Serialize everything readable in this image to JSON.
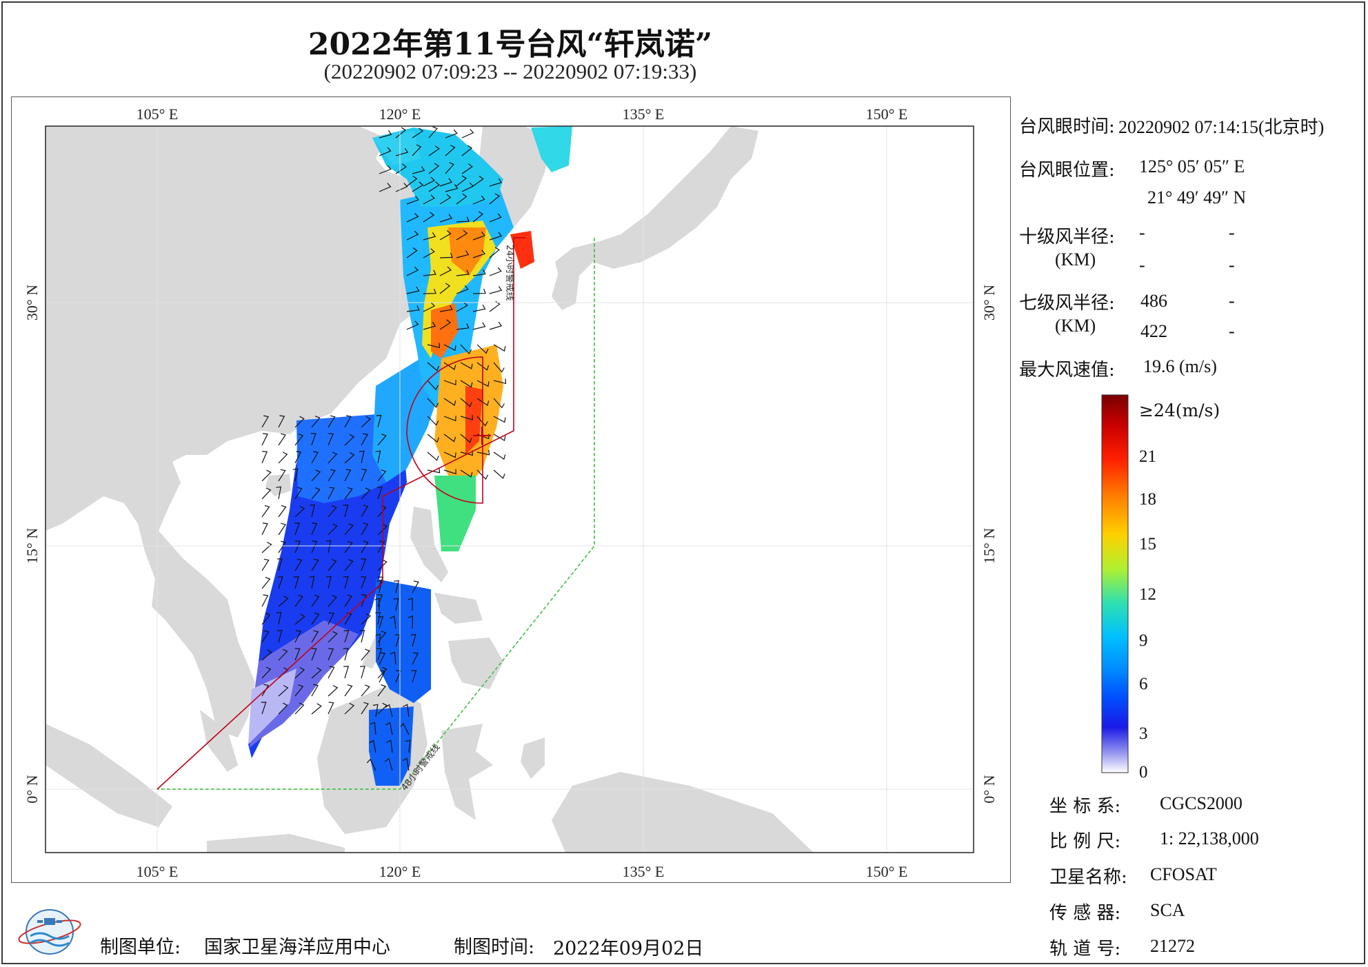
{
  "title": "2022年第11号台风“轩岚诺”",
  "subtitle": "(20220902 07:09:23 -- 20220902 07:19:33)",
  "axes": {
    "lon_top": [
      "105° E",
      "120° E",
      "135° E",
      "150° E"
    ],
    "lon_bottom": [
      "105° E",
      "120° E",
      "135° E",
      "150° E"
    ],
    "lat_left": [
      "30° N",
      "15° N",
      "0° N"
    ],
    "lat_right": [
      "30° N",
      "15° N",
      "0° N"
    ]
  },
  "map_labels": {
    "line_24h": "24小时警戒线",
    "line_48h": "48小时警戒线"
  },
  "info": {
    "eye_time_label": "台风眼时间:",
    "eye_time_value": "20220902 07:14:15(北京时)",
    "eye_pos_label": "台风眼位置:",
    "eye_lon": "125° 05′ 05″ E",
    "eye_lat": "21° 49′ 49″ N",
    "r10_label": "十级风半径:",
    "r10_unit": "(KM)",
    "r10_values": [
      "-",
      "-",
      "-",
      "-"
    ],
    "r7_label": "七级风半径:",
    "r7_unit": "(KM)",
    "r7_values": [
      "486",
      "-",
      "422",
      "-"
    ],
    "max_wind_label": "最大风速值:",
    "max_wind_value": "19.6  (m/s)"
  },
  "colorbar": {
    "top_label": "≥24(m/s)",
    "ticks": [
      "21",
      "18",
      "15",
      "12",
      "9",
      "6",
      "3",
      "0"
    ],
    "colors": [
      "#7a0000",
      "#c80000",
      "#ff2a00",
      "#ff7a00",
      "#ffc000",
      "#e8ff1a",
      "#90f040",
      "#30e0b0",
      "#00c8ff",
      "#0090ff",
      "#0050ff",
      "#1a20e6",
      "#5a5aee",
      "#a8a8f4",
      "#ffffff"
    ]
  },
  "meta": {
    "crs_label": "坐 标 系:",
    "crs_value": "CGCS2000",
    "scale_label": "比 例 尺:",
    "scale_value": "1: 22,138,000",
    "sat_label": "卫星名称:",
    "sat_value": "CFOSAT",
    "sensor_label": "传 感 器:",
    "sensor_value": "SCA",
    "orbit_label": "轨 道 号:",
    "orbit_value": "21272"
  },
  "footer": {
    "maker_label": "制图单位:",
    "maker_value": "国家卫星海洋应用中心",
    "date_label": "制图时间:",
    "date_value": "2022年09月02日"
  },
  "colors": {
    "land": "#d9d9d9",
    "ocean": "#ffffff",
    "warning_24h": "#c0001a",
    "warning_48h": "#33bb33",
    "grid": "#e6e6e6"
  }
}
